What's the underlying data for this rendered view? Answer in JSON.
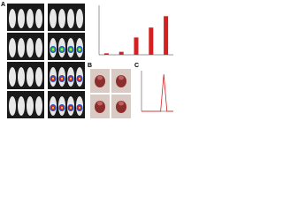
{
  "panels": {
    "labels": [
      "A",
      "B",
      "C"
    ]
  },
  "chart_data": [
    {
      "type": "bar",
      "categories": [
        null,
        null,
        null,
        null,
        null
      ],
      "values": [
        0.03,
        0.06,
        0.35,
        0.55,
        0.78
      ],
      "color": "#d62020",
      "ylim": [
        0,
        1
      ]
    },
    {
      "type": "line",
      "x": [
        0,
        1,
        2,
        3,
        4,
        5,
        6,
        7,
        8,
        9,
        10
      ],
      "values": [
        0,
        0,
        0,
        0,
        0,
        0,
        0,
        1,
        0,
        0,
        0
      ],
      "color": "#d62020",
      "xlim": [
        0,
        10
      ],
      "ylim": [
        0,
        1.1
      ]
    }
  ]
}
